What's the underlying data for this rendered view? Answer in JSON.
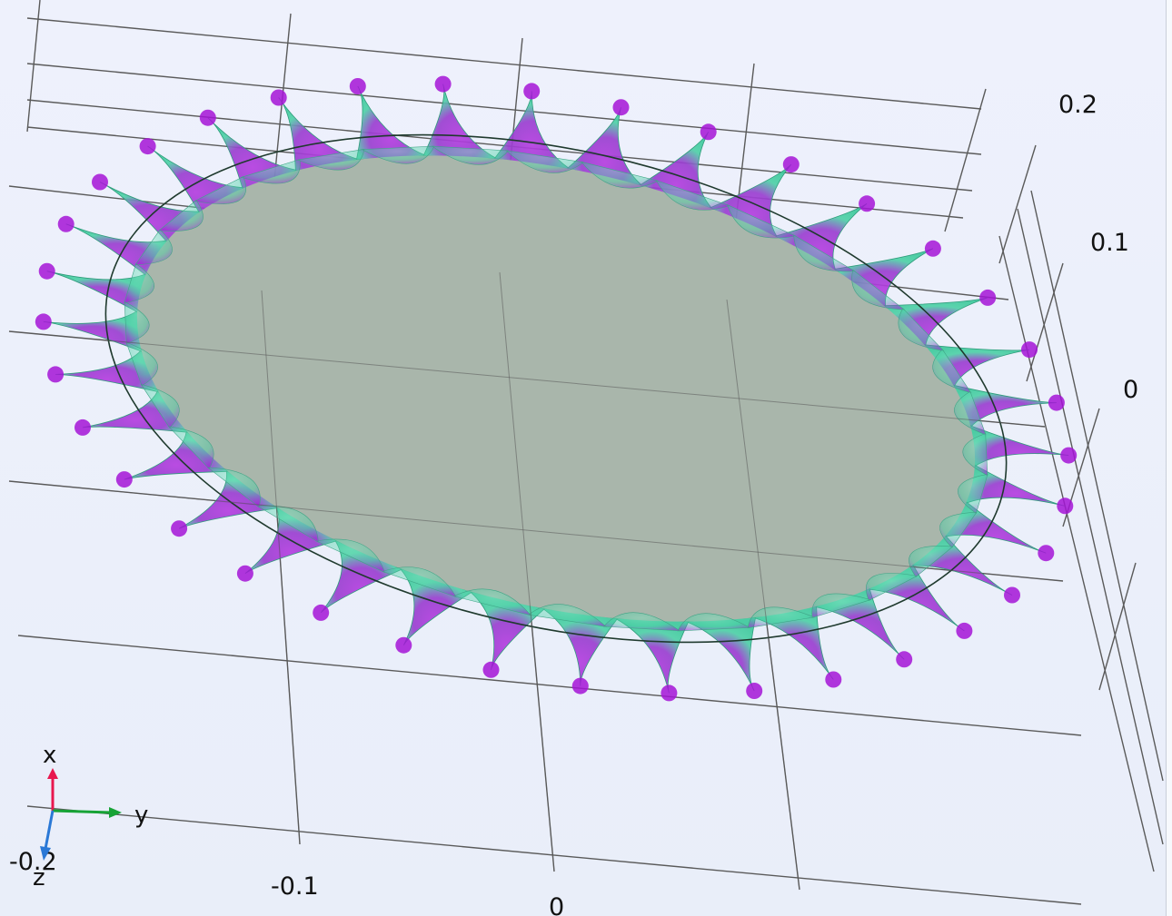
{
  "view": {
    "background_color": "#e9eef9",
    "grid_color": "#5a5a5a",
    "plate_color": "#a9b6ab",
    "surface_colors": {
      "low": "#40d9a8",
      "high": "#a414d6"
    },
    "lobe_count": 36
  },
  "axis_ticks": {
    "right": [
      "0.2",
      "0.1",
      "0"
    ],
    "bottom": [
      "-0.2",
      "-0.1",
      "0"
    ]
  },
  "triad": {
    "x_label": "x",
    "y_label": "y",
    "z_label": "z",
    "x_color": "#e8174e",
    "y_color": "#17a336",
    "z_color": "#2a78d6"
  }
}
